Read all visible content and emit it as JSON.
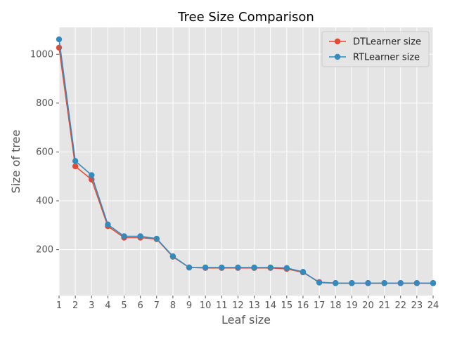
{
  "chart_data": {
    "type": "line",
    "title": "Tree Size Comparison",
    "xlabel": "Leaf size",
    "ylabel": "Size of tree",
    "xlim": [
      1,
      24
    ],
    "ylim": [
      12,
      1110
    ],
    "x": [
      1,
      2,
      3,
      4,
      5,
      6,
      7,
      8,
      9,
      10,
      11,
      12,
      13,
      14,
      15,
      16,
      17,
      18,
      19,
      20,
      21,
      22,
      23,
      24
    ],
    "xticks": [
      "1",
      "2",
      "3",
      "4",
      "5",
      "6",
      "7",
      "8",
      "9",
      "10",
      "11",
      "12",
      "13",
      "14",
      "15",
      "16",
      "17",
      "18",
      "19",
      "20",
      "21",
      "22",
      "23",
      "24"
    ],
    "yticks": [
      200,
      400,
      600,
      800,
      1000
    ],
    "ytick_labels": [
      "200",
      "400",
      "600",
      "800",
      "1000"
    ],
    "grid": true,
    "legend_position": "top-right",
    "series": [
      {
        "name": "DTLearner size",
        "color": "#E24A33",
        "values": [
          1027,
          541,
          487,
          296,
          249,
          249,
          243,
          171,
          127,
          125,
          125,
          125,
          125,
          125,
          121,
          107,
          67,
          63,
          63,
          63,
          63,
          63,
          63,
          63
        ]
      },
      {
        "name": "RTLearner size",
        "color": "#348ABD",
        "values": [
          1061,
          563,
          505,
          303,
          255,
          255,
          245,
          173,
          127,
          127,
          127,
          127,
          127,
          127,
          125,
          109,
          65,
          63,
          63,
          63,
          63,
          63,
          63,
          63
        ]
      }
    ]
  }
}
